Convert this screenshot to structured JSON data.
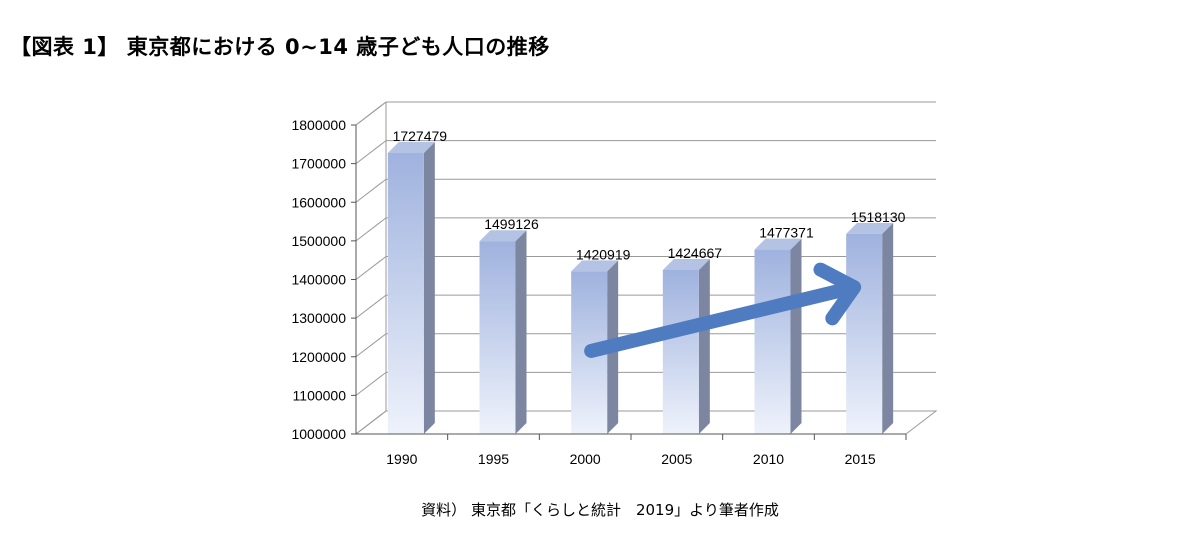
{
  "figure": {
    "title": "【図表 1】 東京都における 0∼14 歳子ども人口の推移",
    "source": "資料） 東京都「くらしと統計　2019」より筆者作成"
  },
  "chart_data": {
    "type": "bar",
    "style": "3d-column",
    "categories": [
      "1990",
      "1995",
      "2000",
      "2005",
      "2010",
      "2015"
    ],
    "values": [
      1727479,
      1499126,
      1420919,
      1424667,
      1477371,
      1518130
    ],
    "data_labels": [
      "1727479",
      "1499126",
      "1420919",
      "1424667",
      "1477371",
      "1518130"
    ],
    "ylim": [
      1000000,
      1800000
    ],
    "yticks": [
      1000000,
      1100000,
      1200000,
      1300000,
      1400000,
      1500000,
      1600000,
      1700000,
      1800000
    ],
    "ytick_labels": [
      "1000000",
      "1100000",
      "1200000",
      "1300000",
      "1400000",
      "1500000",
      "1600000",
      "1700000",
      "1800000"
    ],
    "grid": true,
    "legend": "none",
    "annotation": "upward trend arrow from 2000 to 2015",
    "colors": {
      "bar_top": "#9fb2de",
      "bar_bottom": "#eef2fb",
      "bar_side": "#7c86a0",
      "bar_cap": "#b4c2e4",
      "arrow": "#4f7cc0",
      "grid": "#9a9a9a"
    }
  }
}
